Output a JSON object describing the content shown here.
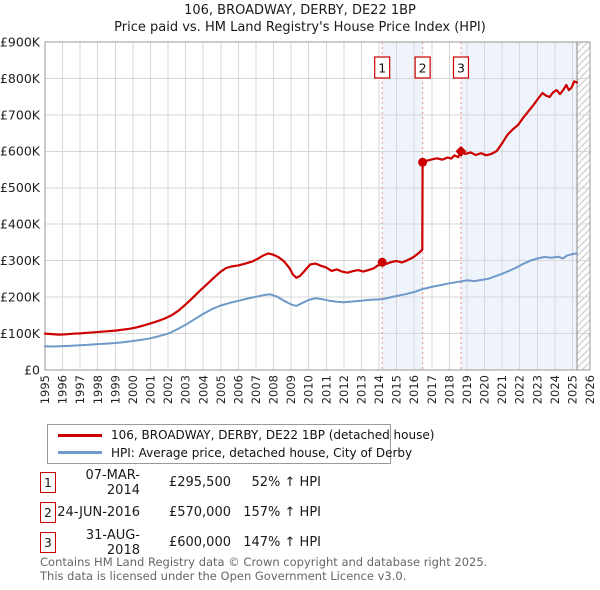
{
  "title": "106, BROADWAY, DERBY, DE22 1BP",
  "subtitle": "Price paid vs. HM Land Registry's House Price Index (HPI)",
  "colors": {
    "property": "#cc0000",
    "hpi": "#6f99c8",
    "band": "#eff3fb",
    "grid": "#d7d7d7",
    "axis": "#999999",
    "marker_line": "#ee8888",
    "hatch_line": "#c5c5c5",
    "hatch_bg": "#fbfcfe",
    "hatch_edge": "#888888",
    "tick_text": "#222222",
    "flag_text": "#111111"
  },
  "chart_data": {
    "type": "line",
    "title": "Price paid vs. HM Land Registry's House Price Index (HPI)",
    "xlabel": "",
    "ylabel": "",
    "x_range": [
      1995,
      2026
    ],
    "y_range": [
      0,
      900000
    ],
    "x_ticks": [
      1995,
      1996,
      1997,
      1998,
      1999,
      2000,
      2001,
      2002,
      2003,
      2004,
      2005,
      2006,
      2007,
      2008,
      2009,
      2010,
      2011,
      2012,
      2013,
      2014,
      2015,
      2016,
      2017,
      2018,
      2019,
      2020,
      2021,
      2022,
      2023,
      2024,
      2025,
      2026
    ],
    "y_tick_values": [
      0,
      100000,
      200000,
      300000,
      400000,
      500000,
      600000,
      700000,
      800000,
      900000
    ],
    "y_tick_labels": [
      "£0",
      "£100K",
      "£200K",
      "£300K",
      "£400K",
      "£500K",
      "£600K",
      "£700K",
      "£800K",
      "£900K"
    ],
    "grid": true,
    "legend_position": "bottom-left",
    "data_end_x": 2025.26,
    "shaded_bands": [
      [
        2014.18,
        2016.48
      ],
      [
        2018.66,
        2025.26
      ]
    ],
    "markers": [
      {
        "num": "1",
        "x": 2014.18,
        "y": 295500,
        "shape": "circle"
      },
      {
        "num": "2",
        "x": 2016.48,
        "y": 570000,
        "shape": "circle"
      },
      {
        "num": "3",
        "x": 2018.66,
        "y": 600000,
        "shape": "diamond"
      }
    ],
    "series": [
      {
        "name": "106, BROADWAY, DERBY, DE22 1BP (detached house)",
        "color_key": "property",
        "points": [
          [
            1995.0,
            100000
          ],
          [
            1995.4,
            98500
          ],
          [
            1995.8,
            97000
          ],
          [
            1996.2,
            98000
          ],
          [
            1996.6,
            99500
          ],
          [
            1997.0,
            100500
          ],
          [
            1997.4,
            102000
          ],
          [
            1997.8,
            103500
          ],
          [
            1998.2,
            105000
          ],
          [
            1998.6,
            106500
          ],
          [
            1999.0,
            108000
          ],
          [
            1999.4,
            110500
          ],
          [
            1999.8,
            113000
          ],
          [
            2000.2,
            117000
          ],
          [
            2000.6,
            122000
          ],
          [
            2001.0,
            128000
          ],
          [
            2001.4,
            134000
          ],
          [
            2001.8,
            141000
          ],
          [
            2002.2,
            150000
          ],
          [
            2002.6,
            163000
          ],
          [
            2003.0,
            180000
          ],
          [
            2003.4,
            198000
          ],
          [
            2003.8,
            217000
          ],
          [
            2004.2,
            235000
          ],
          [
            2004.6,
            253000
          ],
          [
            2005.0,
            270000
          ],
          [
            2005.3,
            280000
          ],
          [
            2005.6,
            284000
          ],
          [
            2006.0,
            287000
          ],
          [
            2006.4,
            292000
          ],
          [
            2006.8,
            298000
          ],
          [
            2007.1,
            305000
          ],
          [
            2007.4,
            314000
          ],
          [
            2007.7,
            320000
          ],
          [
            2008.0,
            316000
          ],
          [
            2008.3,
            309000
          ],
          [
            2008.6,
            298000
          ],
          [
            2008.9,
            280000
          ],
          [
            2009.1,
            262000
          ],
          [
            2009.3,
            253000
          ],
          [
            2009.5,
            258000
          ],
          [
            2009.7,
            268000
          ],
          [
            2009.9,
            280000
          ],
          [
            2010.1,
            290000
          ],
          [
            2010.4,
            292000
          ],
          [
            2010.7,
            286000
          ],
          [
            2011.0,
            281000
          ],
          [
            2011.3,
            272000
          ],
          [
            2011.6,
            276000
          ],
          [
            2011.9,
            270000
          ],
          [
            2012.2,
            267000
          ],
          [
            2012.5,
            271000
          ],
          [
            2012.8,
            274000
          ],
          [
            2013.1,
            270000
          ],
          [
            2013.4,
            274000
          ],
          [
            2013.7,
            279000
          ],
          [
            2014.0,
            289000
          ],
          [
            2014.18,
            295500
          ],
          [
            2014.4,
            291000
          ],
          [
            2014.7,
            296000
          ],
          [
            2015.0,
            299000
          ],
          [
            2015.3,
            295000
          ],
          [
            2015.6,
            301000
          ],
          [
            2015.9,
            308000
          ],
          [
            2016.1,
            315000
          ],
          [
            2016.3,
            323000
          ],
          [
            2016.46,
            330000
          ],
          [
            2016.48,
            570000
          ],
          [
            2016.7,
            574000
          ],
          [
            2017.0,
            578000
          ],
          [
            2017.3,
            581000
          ],
          [
            2017.6,
            577000
          ],
          [
            2017.9,
            583000
          ],
          [
            2018.1,
            580000
          ],
          [
            2018.3,
            589000
          ],
          [
            2018.5,
            584000
          ],
          [
            2018.66,
            600000
          ],
          [
            2018.9,
            593000
          ],
          [
            2019.2,
            597000
          ],
          [
            2019.5,
            590000
          ],
          [
            2019.8,
            595000
          ],
          [
            2020.1,
            589000
          ],
          [
            2020.4,
            593000
          ],
          [
            2020.7,
            601000
          ],
          [
            2021.0,
            622000
          ],
          [
            2021.3,
            645000
          ],
          [
            2021.6,
            660000
          ],
          [
            2021.9,
            672000
          ],
          [
            2022.2,
            692000
          ],
          [
            2022.5,
            710000
          ],
          [
            2022.8,
            728000
          ],
          [
            2023.1,
            748000
          ],
          [
            2023.3,
            760000
          ],
          [
            2023.5,
            753000
          ],
          [
            2023.7,
            749000
          ],
          [
            2023.9,
            762000
          ],
          [
            2024.1,
            768000
          ],
          [
            2024.3,
            757000
          ],
          [
            2024.5,
            770000
          ],
          [
            2024.65,
            782000
          ],
          [
            2024.8,
            768000
          ],
          [
            2024.95,
            775000
          ],
          [
            2025.1,
            792000
          ],
          [
            2025.26,
            789000
          ]
        ]
      },
      {
        "name": "HPI: Average price, detached house, City of Derby",
        "color_key": "hpi",
        "points": [
          [
            1995.0,
            65000
          ],
          [
            1995.5,
            64500
          ],
          [
            1996.0,
            65500
          ],
          [
            1996.5,
            66500
          ],
          [
            1997.0,
            68000
          ],
          [
            1997.5,
            69500
          ],
          [
            1998.0,
            71000
          ],
          [
            1998.5,
            72500
          ],
          [
            1999.0,
            74000
          ],
          [
            1999.5,
            76500
          ],
          [
            2000.0,
            79500
          ],
          [
            2000.5,
            83000
          ],
          [
            2001.0,
            87000
          ],
          [
            2001.5,
            93000
          ],
          [
            2002.0,
            100000
          ],
          [
            2002.5,
            111000
          ],
          [
            2003.0,
            124000
          ],
          [
            2003.5,
            139000
          ],
          [
            2004.0,
            154000
          ],
          [
            2004.5,
            167000
          ],
          [
            2005.0,
            177000
          ],
          [
            2005.5,
            184000
          ],
          [
            2006.0,
            190000
          ],
          [
            2006.5,
            196000
          ],
          [
            2007.0,
            201000
          ],
          [
            2007.4,
            205000
          ],
          [
            2007.8,
            208000
          ],
          [
            2008.2,
            201000
          ],
          [
            2008.6,
            190000
          ],
          [
            2009.0,
            180000
          ],
          [
            2009.3,
            176000
          ],
          [
            2009.6,
            183000
          ],
          [
            2010.0,
            192000
          ],
          [
            2010.4,
            197000
          ],
          [
            2010.8,
            194000
          ],
          [
            2011.2,
            190000
          ],
          [
            2011.6,
            187000
          ],
          [
            2012.0,
            186000
          ],
          [
            2012.5,
            188000
          ],
          [
            2013.0,
            190000
          ],
          [
            2013.5,
            193000
          ],
          [
            2014.18,
            194000
          ],
          [
            2014.6,
            199000
          ],
          [
            2015.0,
            203000
          ],
          [
            2015.5,
            208000
          ],
          [
            2016.0,
            214000
          ],
          [
            2016.48,
            222000
          ],
          [
            2017.0,
            228000
          ],
          [
            2017.5,
            233000
          ],
          [
            2018.0,
            238000
          ],
          [
            2018.66,
            243000
          ],
          [
            2019.0,
            246000
          ],
          [
            2019.4,
            244000
          ],
          [
            2019.8,
            247000
          ],
          [
            2020.2,
            250000
          ],
          [
            2020.6,
            257000
          ],
          [
            2021.0,
            264000
          ],
          [
            2021.4,
            272000
          ],
          [
            2021.8,
            281000
          ],
          [
            2022.2,
            291000
          ],
          [
            2022.6,
            300000
          ],
          [
            2023.0,
            306000
          ],
          [
            2023.4,
            310000
          ],
          [
            2023.8,
            308000
          ],
          [
            2024.2,
            311000
          ],
          [
            2024.45,
            306000
          ],
          [
            2024.7,
            314000
          ],
          [
            2025.0,
            318000
          ],
          [
            2025.26,
            320000
          ]
        ]
      }
    ]
  },
  "legend": {
    "items": [
      {
        "label": "106, BROADWAY, DERBY, DE22 1BP (detached house)"
      },
      {
        "label": "HPI: Average price, detached house, City of Derby"
      }
    ]
  },
  "table": {
    "rows": [
      {
        "num": "1",
        "date": "07-MAR-2014",
        "price": "£295,500",
        "hpi": "52% ↑ HPI"
      },
      {
        "num": "2",
        "date": "24-JUN-2016",
        "price": "£570,000",
        "hpi": "157% ↑ HPI"
      },
      {
        "num": "3",
        "date": "31-AUG-2018",
        "price": "£600,000",
        "hpi": "147% ↑ HPI"
      }
    ]
  },
  "footer": {
    "line1": "Contains HM Land Registry data © Crown copyright and database right 2025.",
    "line2": "This data is licensed under the Open Government Licence v3.0."
  }
}
